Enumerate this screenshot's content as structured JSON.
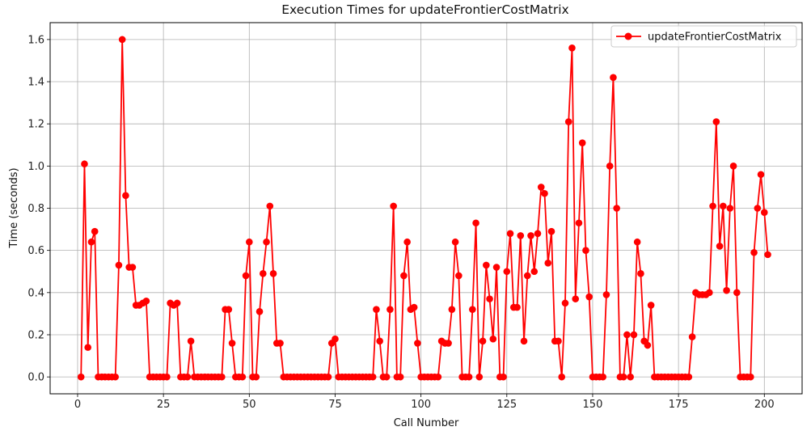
{
  "chart_data": {
    "type": "line",
    "title": "Execution Times for updateFrontierCostMatrix",
    "xlabel": "Call Number",
    "ylabel": "Time (seconds)",
    "xlim": [
      -8,
      211
    ],
    "ylim": [
      -0.08,
      1.68
    ],
    "xticks": [
      0,
      25,
      50,
      75,
      100,
      125,
      150,
      175,
      200
    ],
    "yticks": [
      0.0,
      0.2,
      0.4,
      0.6,
      0.8,
      1.0,
      1.2,
      1.4,
      1.6
    ],
    "grid": true,
    "legend_position": "top-right",
    "x_start": 1,
    "series": [
      {
        "name": "updateFrontierCostMatrix",
        "color": "#ff0000",
        "marker": "circle",
        "values": [
          0.0,
          1.01,
          0.14,
          0.64,
          0.69,
          0.0,
          0.0,
          0.0,
          0.0,
          0.0,
          0.0,
          0.53,
          1.6,
          0.86,
          0.52,
          0.52,
          0.34,
          0.34,
          0.35,
          0.36,
          0.0,
          0.0,
          0.0,
          0.0,
          0.0,
          0.0,
          0.35,
          0.34,
          0.35,
          0.0,
          0.0,
          0.0,
          0.17,
          0.0,
          0.0,
          0.0,
          0.0,
          0.0,
          0.0,
          0.0,
          0.0,
          0.0,
          0.32,
          0.32,
          0.16,
          0.0,
          0.0,
          0.0,
          0.48,
          0.64,
          0.0,
          0.0,
          0.31,
          0.49,
          0.64,
          0.81,
          0.49,
          0.16,
          0.16,
          0.0,
          0.0,
          0.0,
          0.0,
          0.0,
          0.0,
          0.0,
          0.0,
          0.0,
          0.0,
          0.0,
          0.0,
          0.0,
          0.0,
          0.16,
          0.18,
          0.0,
          0.0,
          0.0,
          0.0,
          0.0,
          0.0,
          0.0,
          0.0,
          0.0,
          0.0,
          0.0,
          0.32,
          0.17,
          0.0,
          0.0,
          0.32,
          0.81,
          0.0,
          0.0,
          0.48,
          0.64,
          0.32,
          0.33,
          0.16,
          0.0,
          0.0,
          0.0,
          0.0,
          0.0,
          0.0,
          0.17,
          0.16,
          0.16,
          0.32,
          0.64,
          0.48,
          0.0,
          0.0,
          0.0,
          0.32,
          0.73,
          0.0,
          0.17,
          0.53,
          0.37,
          0.18,
          0.52,
          0.0,
          0.0,
          0.5,
          0.68,
          0.33,
          0.33,
          0.67,
          0.17,
          0.48,
          0.67,
          0.5,
          0.68,
          0.9,
          0.87,
          0.54,
          0.69,
          0.17,
          0.17,
          0.0,
          0.35,
          1.21,
          1.56,
          0.37,
          0.73,
          1.11,
          0.6,
          0.38,
          0.0,
          0.0,
          0.0,
          0.0,
          0.39,
          1.0,
          1.42,
          0.8,
          0.0,
          0.0,
          0.2,
          0.0,
          0.2,
          0.64,
          0.49,
          0.17,
          0.15,
          0.34,
          0.0,
          0.0,
          0.0,
          0.0,
          0.0,
          0.0,
          0.0,
          0.0,
          0.0,
          0.0,
          0.0,
          0.19,
          0.4,
          0.39,
          0.39,
          0.39,
          0.4,
          0.81,
          1.21,
          0.62,
          0.81,
          0.41,
          0.8,
          1.0,
          0.4,
          0.0,
          0.0,
          0.0,
          0.0,
          0.59,
          0.8,
          0.96,
          0.78,
          0.58
        ]
      }
    ]
  }
}
